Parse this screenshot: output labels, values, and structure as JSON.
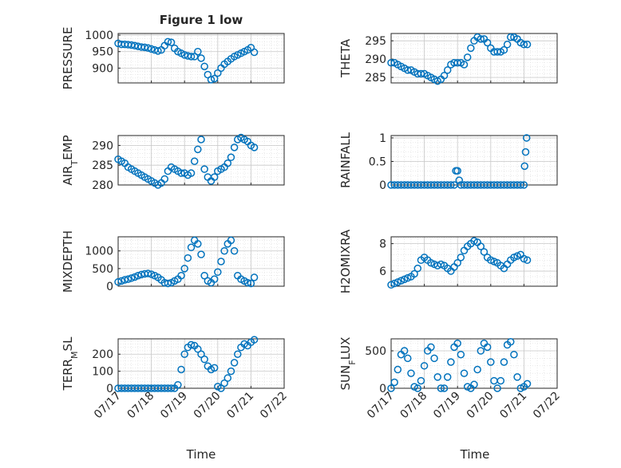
{
  "figure": {
    "title": "Figure 1 low",
    "xtick_labels": [
      "07/17",
      "07/18",
      "07/19",
      "07/20",
      "07/21",
      "07/22"
    ],
    "xlabel": "Time",
    "marker_color": "#0072BD"
  },
  "chart_data": [
    {
      "type": "scatter",
      "ylabel": "PRESSURE",
      "yticks": [
        900,
        950,
        1000
      ],
      "ylim": [
        855,
        1005
      ],
      "xlim": [
        0,
        5
      ],
      "grid": true,
      "x": [
        0.0,
        0.1,
        0.2,
        0.3,
        0.4,
        0.5,
        0.6,
        0.7,
        0.8,
        0.9,
        1.0,
        1.1,
        1.2,
        1.3,
        1.4,
        1.5,
        1.6,
        1.7,
        1.8,
        1.9,
        2.0,
        2.1,
        2.2,
        2.3,
        2.4,
        2.5,
        2.6,
        2.7,
        2.8,
        2.9,
        3.0,
        3.1,
        3.2,
        3.3,
        3.4,
        3.5,
        3.6,
        3.7,
        3.8,
        3.9,
        4.0,
        4.1
      ],
      "y": [
        975,
        972,
        972,
        971,
        970,
        968,
        966,
        964,
        963,
        961,
        958,
        955,
        952,
        955,
        968,
        980,
        978,
        960,
        950,
        945,
        940,
        937,
        935,
        935,
        950,
        930,
        905,
        880,
        865,
        868,
        885,
        900,
        912,
        920,
        928,
        935,
        940,
        945,
        950,
        955,
        962,
        948
      ]
    },
    {
      "type": "scatter",
      "ylabel": "THETA",
      "yticks": [
        285,
        290,
        295
      ],
      "ylim": [
        283.5,
        297
      ],
      "xlim": [
        0,
        5
      ],
      "grid": true,
      "x": [
        0.0,
        0.1,
        0.2,
        0.3,
        0.4,
        0.5,
        0.6,
        0.7,
        0.8,
        0.9,
        1.0,
        1.1,
        1.2,
        1.3,
        1.4,
        1.5,
        1.6,
        1.7,
        1.8,
        1.9,
        2.0,
        2.1,
        2.2,
        2.3,
        2.4,
        2.5,
        2.6,
        2.7,
        2.8,
        2.9,
        3.0,
        3.1,
        3.2,
        3.3,
        3.4,
        3.5,
        3.6,
        3.7,
        3.8,
        3.9,
        4.0,
        4.1
      ],
      "y": [
        289.0,
        289.0,
        288.5,
        288.0,
        287.5,
        287.0,
        287.0,
        286.5,
        286.0,
        286.0,
        286.0,
        285.5,
        285.0,
        284.5,
        284.0,
        284.5,
        285.5,
        287.0,
        288.5,
        289.0,
        289.0,
        289.0,
        288.5,
        290.5,
        293.0,
        295.0,
        296.0,
        295.5,
        295.5,
        294.5,
        293.0,
        292.0,
        292.0,
        292.0,
        292.5,
        294.0,
        296.0,
        296.0,
        295.5,
        294.5,
        294.0,
        294.0
      ]
    },
    {
      "type": "scatter",
      "ylabel": "AIR_TEMP",
      "yticks": [
        280,
        285,
        290
      ],
      "ylim": [
        280,
        292.5
      ],
      "xlim": [
        0,
        5
      ],
      "grid": true,
      "x": [
        0.0,
        0.1,
        0.2,
        0.3,
        0.4,
        0.5,
        0.6,
        0.7,
        0.8,
        0.9,
        1.0,
        1.1,
        1.2,
        1.3,
        1.4,
        1.5,
        1.6,
        1.7,
        1.8,
        1.9,
        2.0,
        2.1,
        2.2,
        2.3,
        2.4,
        2.5,
        2.6,
        2.7,
        2.8,
        2.9,
        3.0,
        3.1,
        3.2,
        3.3,
        3.4,
        3.5,
        3.6,
        3.7,
        3.8,
        3.9,
        4.0,
        4.1
      ],
      "y": [
        286.5,
        286.0,
        285.5,
        284.5,
        284.0,
        283.5,
        283.0,
        282.5,
        282.0,
        281.5,
        281.0,
        280.5,
        280.0,
        280.5,
        281.5,
        283.5,
        284.5,
        284.0,
        283.5,
        283.0,
        283.0,
        282.5,
        283.0,
        286.0,
        289.0,
        291.5,
        284.0,
        282.0,
        281.0,
        282.0,
        283.5,
        284.0,
        284.5,
        285.5,
        287.0,
        289.5,
        291.5,
        292.0,
        291.5,
        291.0,
        290.0,
        289.5
      ]
    },
    {
      "type": "scatter",
      "ylabel": "RAINFALL",
      "yticks": [
        0,
        0.5,
        1
      ],
      "ylim": [
        0,
        1.05
      ],
      "xlim": [
        0,
        5
      ],
      "grid": true,
      "x": [
        0.0,
        0.1,
        0.2,
        0.3,
        0.4,
        0.5,
        0.6,
        0.7,
        0.8,
        0.9,
        1.0,
        1.1,
        1.2,
        1.3,
        1.4,
        1.5,
        1.6,
        1.7,
        1.8,
        1.9,
        1.95,
        2.0,
        2.05,
        2.1,
        2.2,
        2.3,
        2.4,
        2.5,
        2.6,
        2.7,
        2.8,
        2.9,
        3.0,
        3.1,
        3.2,
        3.3,
        3.4,
        3.5,
        3.6,
        3.7,
        3.8,
        3.9,
        4.0,
        4.02,
        4.05,
        4.08
      ],
      "y": [
        0,
        0,
        0,
        0,
        0,
        0,
        0,
        0,
        0,
        0,
        0,
        0,
        0,
        0,
        0,
        0,
        0,
        0,
        0,
        0,
        0.3,
        0.3,
        0.1,
        0,
        0,
        0,
        0,
        0,
        0,
        0,
        0,
        0,
        0,
        0,
        0,
        0,
        0,
        0,
        0,
        0,
        0,
        0,
        0,
        0.4,
        0.7,
        1.0
      ]
    },
    {
      "type": "scatter",
      "ylabel": "MIXDEPTH",
      "yticks": [
        0,
        500,
        1000
      ],
      "ylim": [
        0,
        1400
      ],
      "xlim": [
        0,
        5
      ],
      "grid": true,
      "x": [
        0.0,
        0.1,
        0.2,
        0.3,
        0.4,
        0.5,
        0.6,
        0.7,
        0.8,
        0.9,
        1.0,
        1.1,
        1.2,
        1.3,
        1.4,
        1.5,
        1.6,
        1.7,
        1.8,
        1.9,
        2.0,
        2.1,
        2.2,
        2.3,
        2.4,
        2.5,
        2.6,
        2.7,
        2.8,
        2.9,
        3.0,
        3.1,
        3.2,
        3.3,
        3.4,
        3.5,
        3.6,
        3.7,
        3.8,
        3.9,
        4.0,
        4.1
      ],
      "y": [
        120,
        150,
        180,
        200,
        230,
        260,
        300,
        330,
        350,
        360,
        340,
        300,
        250,
        180,
        100,
        80,
        100,
        150,
        200,
        300,
        500,
        800,
        1100,
        1300,
        1200,
        900,
        300,
        150,
        100,
        200,
        400,
        700,
        1000,
        1200,
        1300,
        1000,
        300,
        200,
        150,
        100,
        80,
        250
      ]
    },
    {
      "type": "scatter",
      "ylabel": "H2OMIXRA",
      "yticks": [
        6,
        8
      ],
      "ylim": [
        4.9,
        8.5
      ],
      "xlim": [
        0,
        5
      ],
      "grid": true,
      "x": [
        0.0,
        0.1,
        0.2,
        0.3,
        0.4,
        0.5,
        0.6,
        0.7,
        0.8,
        0.9,
        1.0,
        1.1,
        1.2,
        1.3,
        1.4,
        1.5,
        1.6,
        1.7,
        1.8,
        1.9,
        2.0,
        2.1,
        2.2,
        2.3,
        2.4,
        2.5,
        2.6,
        2.7,
        2.8,
        2.9,
        3.0,
        3.1,
        3.2,
        3.3,
        3.4,
        3.5,
        3.6,
        3.7,
        3.8,
        3.9,
        4.0,
        4.1
      ],
      "y": [
        5.0,
        5.1,
        5.2,
        5.3,
        5.4,
        5.5,
        5.6,
        5.8,
        6.2,
        6.8,
        7.0,
        6.8,
        6.6,
        6.5,
        6.4,
        6.5,
        6.4,
        6.2,
        6.0,
        6.3,
        6.6,
        7.0,
        7.5,
        7.8,
        8.0,
        8.2,
        8.1,
        7.8,
        7.4,
        7.0,
        6.8,
        6.7,
        6.6,
        6.4,
        6.2,
        6.5,
        6.8,
        7.0,
        7.1,
        7.2,
        6.9,
        6.8
      ]
    },
    {
      "type": "scatter",
      "ylabel": "TERR_MSL",
      "yticks": [
        0,
        100,
        200
      ],
      "ylim": [
        0,
        290
      ],
      "xlim": [
        0,
        5
      ],
      "grid": true,
      "x": [
        0.0,
        0.1,
        0.2,
        0.3,
        0.4,
        0.5,
        0.6,
        0.7,
        0.8,
        0.9,
        1.0,
        1.1,
        1.2,
        1.3,
        1.4,
        1.5,
        1.6,
        1.7,
        1.8,
        1.9,
        2.0,
        2.1,
        2.2,
        2.3,
        2.4,
        2.5,
        2.6,
        2.7,
        2.8,
        2.9,
        3.0,
        3.1,
        3.2,
        3.3,
        3.4,
        3.5,
        3.6,
        3.7,
        3.8,
        3.9,
        4.0,
        4.1
      ],
      "y": [
        0,
        0,
        0,
        0,
        0,
        0,
        0,
        0,
        0,
        0,
        0,
        0,
        0,
        0,
        0,
        0,
        0,
        0,
        20,
        110,
        200,
        240,
        255,
        250,
        230,
        200,
        170,
        130,
        110,
        120,
        10,
        0,
        30,
        60,
        100,
        150,
        200,
        240,
        260,
        250,
        270,
        285
      ]
    },
    {
      "type": "scatter",
      "ylabel": "SUN_FLUX",
      "yticks": [
        0,
        500
      ],
      "ylim": [
        0,
        660
      ],
      "xlim": [
        0,
        5
      ],
      "grid": true,
      "x": [
        0.0,
        0.1,
        0.2,
        0.3,
        0.4,
        0.5,
        0.6,
        0.7,
        0.8,
        0.9,
        1.0,
        1.1,
        1.2,
        1.3,
        1.4,
        1.5,
        1.6,
        1.7,
        1.8,
        1.9,
        2.0,
        2.1,
        2.2,
        2.3,
        2.4,
        2.5,
        2.6,
        2.7,
        2.8,
        2.9,
        3.0,
        3.1,
        3.2,
        3.3,
        3.4,
        3.5,
        3.6,
        3.7,
        3.8,
        3.9,
        4.0,
        4.1
      ],
      "y": [
        0,
        80,
        250,
        450,
        500,
        400,
        200,
        20,
        0,
        100,
        300,
        500,
        550,
        400,
        150,
        0,
        0,
        150,
        350,
        550,
        600,
        450,
        200,
        20,
        0,
        50,
        250,
        500,
        600,
        550,
        350,
        100,
        0,
        100,
        350,
        580,
        620,
        450,
        150,
        0,
        20,
        60
      ]
    }
  ]
}
